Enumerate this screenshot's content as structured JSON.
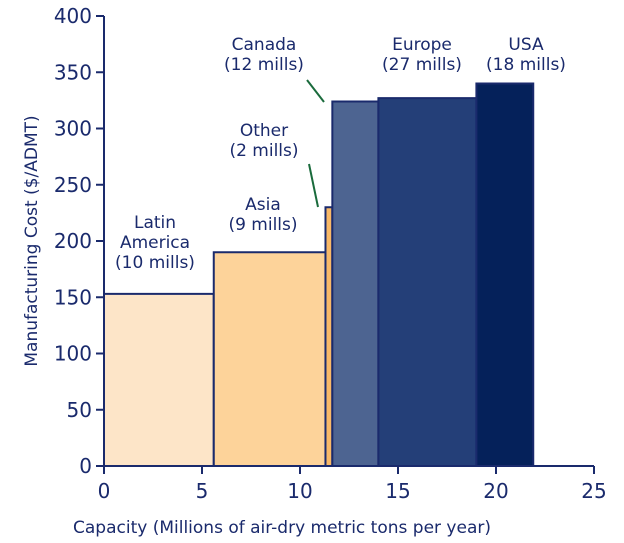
{
  "chart_data": {
    "type": "bar",
    "xlabel": "Capacity (Millions of air-dry metric tons per year)",
    "ylabel": "Manufacturing Cost ($/ADMT)",
    "xlim": [
      0,
      25
    ],
    "ylim": [
      0,
      400
    ],
    "xticks": [
      "0",
      "5",
      "10",
      "15",
      "20",
      "25"
    ],
    "yticks": [
      "0",
      "50",
      "100",
      "150",
      "200",
      "250",
      "300",
      "350",
      "400"
    ],
    "grid": false,
    "legend": "none",
    "segments": [
      {
        "label_lines": [
          "Latin",
          "America",
          "(10 mills)"
        ],
        "x_start": 0,
        "x_end": 5.6,
        "value": 153,
        "color": "#fde5c8"
      },
      {
        "label_lines": [
          "Asia",
          "(9 mills)"
        ],
        "x_start": 5.6,
        "x_end": 11.3,
        "value": 190,
        "color": "#fdd39a"
      },
      {
        "label_lines": [
          "Other",
          "(2 mills)"
        ],
        "x_start": 11.3,
        "x_end": 11.65,
        "value": 230,
        "color": "#f8b968"
      },
      {
        "label_lines": [
          "Canada",
          "(12 mills)"
        ],
        "x_start": 11.65,
        "x_end": 14.0,
        "value": 324,
        "color": "#4d6491"
      },
      {
        "label_lines": [
          "Europe",
          "(27 mills)"
        ],
        "x_start": 14.0,
        "x_end": 19.0,
        "value": 327,
        "color": "#243f78"
      },
      {
        "label_lines": [
          "USA",
          "(18 mills)"
        ],
        "x_start": 19.0,
        "x_end": 21.9,
        "value": 340,
        "color": "#05215a"
      }
    ]
  },
  "colors": {
    "axis": "#1a2a6c",
    "text": "#1a2a6c",
    "leader_line": "#1a6b3c"
  }
}
